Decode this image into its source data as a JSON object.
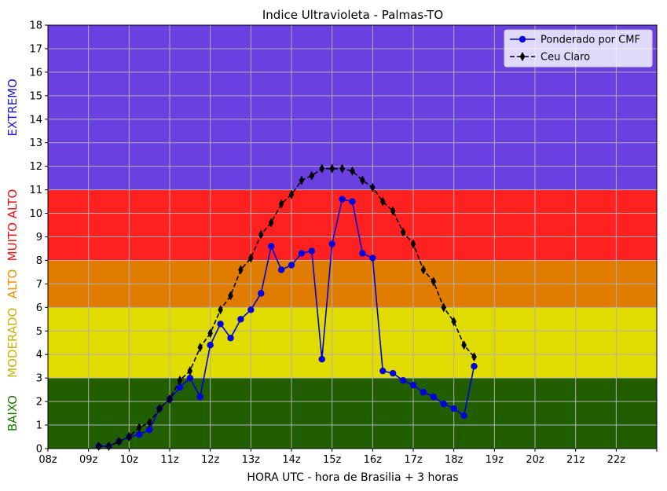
{
  "chart_data": {
    "type": "line",
    "title": "Indice Ultravioleta - Palmas-TO",
    "xlabel": "HORA UTC - hora de Brasilia + 3 horas",
    "ylabel": "",
    "xlim": [
      8,
      23
    ],
    "ylim": [
      0,
      18
    ],
    "x_tick_values": [
      8,
      9,
      10,
      11,
      12,
      13,
      14,
      15,
      16,
      17,
      18,
      19,
      20,
      21,
      22,
      23
    ],
    "x_tick_labels": [
      "08z",
      "09z",
      "10z",
      "11z",
      "12z",
      "13z",
      "14z",
      "15z",
      "16z",
      "17z",
      "18z",
      "19z",
      "20z",
      "21z",
      "22z",
      ""
    ],
    "y_ticks": [
      0,
      1,
      2,
      3,
      4,
      5,
      6,
      7,
      8,
      9,
      10,
      11,
      12,
      13,
      14,
      15,
      16,
      17,
      18
    ],
    "grid": true,
    "legend_position": "top-right",
    "bands": [
      {
        "label": "BAIXO",
        "from": 0,
        "to": 3,
        "color": "#215e00",
        "label_color": "#1a7a00"
      },
      {
        "label": "MODERADO",
        "from": 3,
        "to": 6,
        "color": "#e0dc00",
        "label_color": "#c8b400"
      },
      {
        "label": "ALTO",
        "from": 6,
        "to": 8,
        "color": "#e07c00",
        "label_color": "#f09000"
      },
      {
        "label": "MUITO ALTO",
        "from": 8,
        "to": 11,
        "color": "#ff2020",
        "label_color": "#ee1010"
      },
      {
        "label": "EXTREMO",
        "from": 11,
        "to": 18,
        "color": "#6a40e0",
        "label_color": "#1a1acc"
      }
    ],
    "series": [
      {
        "name": "Ponderado por CMF",
        "color": "#0000e0",
        "marker": "circle",
        "linestyle": "solid",
        "points": [
          [
            9.25,
            0.1
          ],
          [
            9.5,
            0.1
          ],
          [
            9.75,
            0.3
          ],
          [
            10.0,
            0.5
          ],
          [
            10.25,
            0.6
          ],
          [
            10.5,
            0.8
          ],
          [
            10.75,
            1.7
          ],
          [
            11.0,
            2.1
          ],
          [
            11.25,
            2.6
          ],
          [
            11.5,
            3.0
          ],
          [
            11.75,
            2.2
          ],
          [
            12.0,
            4.4
          ],
          [
            12.25,
            5.3
          ],
          [
            12.5,
            4.7
          ],
          [
            12.75,
            5.5
          ],
          [
            13.0,
            5.9
          ],
          [
            13.25,
            6.6
          ],
          [
            13.5,
            8.6
          ],
          [
            13.75,
            7.6
          ],
          [
            14.0,
            7.8
          ],
          [
            14.25,
            8.3
          ],
          [
            14.5,
            8.4
          ],
          [
            14.75,
            3.8
          ],
          [
            15.0,
            8.7
          ],
          [
            15.25,
            10.6
          ],
          [
            15.5,
            10.5
          ],
          [
            15.75,
            8.3
          ],
          [
            16.0,
            8.1
          ],
          [
            16.25,
            3.3
          ],
          [
            16.5,
            3.2
          ],
          [
            16.75,
            2.9
          ],
          [
            17.0,
            2.7
          ],
          [
            17.25,
            2.4
          ],
          [
            17.5,
            2.2
          ],
          [
            17.75,
            1.9
          ],
          [
            18.0,
            1.7
          ],
          [
            18.25,
            1.4
          ],
          [
            18.5,
            3.5
          ]
        ]
      },
      {
        "name": "Ceu Claro",
        "color": "#000000",
        "marker": "thin_diamond",
        "linestyle": "dashed",
        "points": [
          [
            9.25,
            0.1
          ],
          [
            9.5,
            0.1
          ],
          [
            9.75,
            0.3
          ],
          [
            10.0,
            0.5
          ],
          [
            10.25,
            0.9
          ],
          [
            10.5,
            1.1
          ],
          [
            10.75,
            1.7
          ],
          [
            11.0,
            2.1
          ],
          [
            11.25,
            2.9
          ],
          [
            11.5,
            3.3
          ],
          [
            11.75,
            4.3
          ],
          [
            12.0,
            4.9
          ],
          [
            12.25,
            5.9
          ],
          [
            12.5,
            6.5
          ],
          [
            12.75,
            7.6
          ],
          [
            13.0,
            8.1
          ],
          [
            13.25,
            9.1
          ],
          [
            13.5,
            9.6
          ],
          [
            13.75,
            10.4
          ],
          [
            14.0,
            10.8
          ],
          [
            14.25,
            11.4
          ],
          [
            14.5,
            11.6
          ],
          [
            14.75,
            11.9
          ],
          [
            15.0,
            11.9
          ],
          [
            15.25,
            11.9
          ],
          [
            15.5,
            11.8
          ],
          [
            15.75,
            11.4
          ],
          [
            16.0,
            11.1
          ],
          [
            16.25,
            10.5
          ],
          [
            16.5,
            10.1
          ],
          [
            16.75,
            9.2
          ],
          [
            17.0,
            8.7
          ],
          [
            17.25,
            7.6
          ],
          [
            17.5,
            7.1
          ],
          [
            17.75,
            6.0
          ],
          [
            18.0,
            5.4
          ],
          [
            18.25,
            4.4
          ],
          [
            18.5,
            3.9
          ]
        ]
      }
    ]
  }
}
